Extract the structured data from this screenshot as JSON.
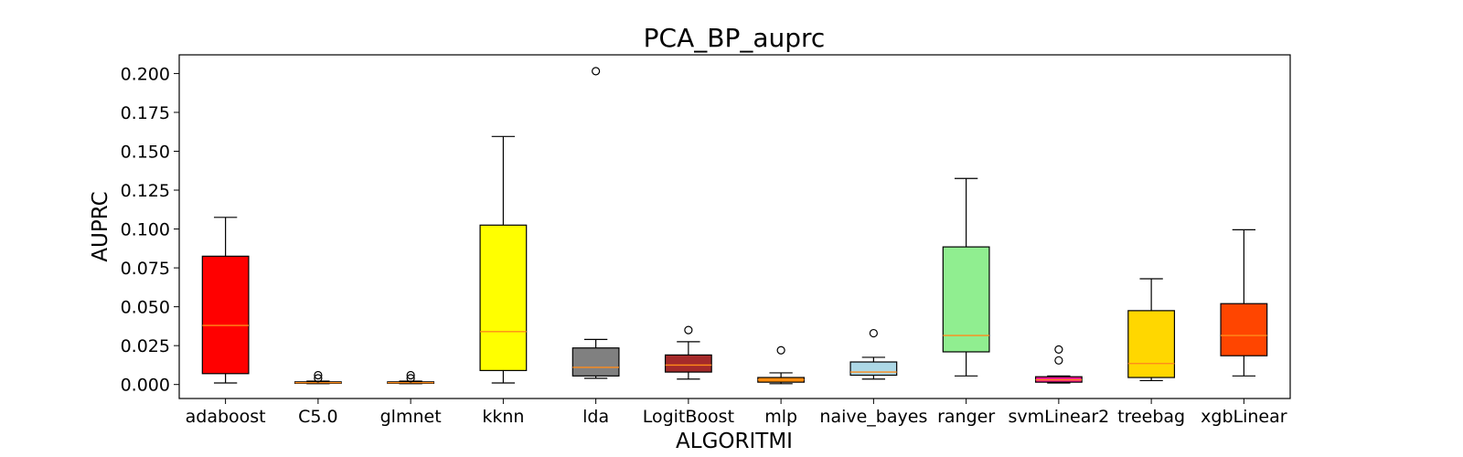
{
  "chart_data": {
    "type": "box",
    "title": "PCA_BP_auprc",
    "xlabel": "ALGORITMI",
    "ylabel": "AUPRC",
    "ylim": [
      -0.009,
      0.212
    ],
    "yticks": [
      "0.000",
      "0.025",
      "0.050",
      "0.075",
      "0.100",
      "0.125",
      "0.150",
      "0.175",
      "0.200"
    ],
    "grid": false,
    "median_color": "#ff8c1a",
    "categories": [
      "adaboost",
      "C5.0",
      "glmnet",
      "kknn",
      "lda",
      "LogitBoost",
      "mlp",
      "naive_bayes",
      "ranger",
      "svmLinear2",
      "treebag",
      "xgbLinear"
    ],
    "boxes": [
      {
        "name": "adaboost",
        "color": "#ff0000",
        "whislo": 0.001,
        "q1": 0.007,
        "median": 0.038,
        "q3": 0.0825,
        "whishi": 0.1075,
        "fliers": []
      },
      {
        "name": "C5.0",
        "color": "#ff8c00",
        "whislo": 0.0005,
        "q1": 0.0008,
        "median": 0.0012,
        "q3": 0.0017,
        "whishi": 0.0022,
        "fliers": [
          0.004,
          0.006
        ]
      },
      {
        "name": "glmnet",
        "color": "#ff8c00",
        "whislo": 0.0005,
        "q1": 0.0008,
        "median": 0.0012,
        "q3": 0.0017,
        "whishi": 0.0022,
        "fliers": [
          0.004,
          0.006
        ]
      },
      {
        "name": "kknn",
        "color": "#ffff00",
        "whislo": 0.001,
        "q1": 0.009,
        "median": 0.034,
        "q3": 0.1025,
        "whishi": 0.1595,
        "fliers": []
      },
      {
        "name": "lda",
        "color": "#808080",
        "whislo": 0.004,
        "q1": 0.0055,
        "median": 0.011,
        "q3": 0.0235,
        "whishi": 0.029,
        "fliers": [
          0.2015
        ]
      },
      {
        "name": "LogitBoost",
        "color": "#a52a2a",
        "whislo": 0.0035,
        "q1": 0.008,
        "median": 0.0125,
        "q3": 0.019,
        "whishi": 0.0275,
        "fliers": [
          0.035
        ]
      },
      {
        "name": "mlp",
        "color": "#ff8c00",
        "whislo": 0.0005,
        "q1": 0.0015,
        "median": 0.003,
        "q3": 0.0045,
        "whishi": 0.0075,
        "fliers": [
          0.022
        ]
      },
      {
        "name": "naive_bayes",
        "color": "#add8e6",
        "whislo": 0.0035,
        "q1": 0.006,
        "median": 0.008,
        "q3": 0.0145,
        "whishi": 0.0175,
        "fliers": [
          0.033
        ]
      },
      {
        "name": "ranger",
        "color": "#90ee90",
        "whislo": 0.0055,
        "q1": 0.021,
        "median": 0.0315,
        "q3": 0.0885,
        "whishi": 0.1325,
        "fliers": []
      },
      {
        "name": "svmLinear2",
        "color": "#ff1493",
        "whislo": 0.001,
        "q1": 0.0015,
        "median": 0.003,
        "q3": 0.005,
        "whishi": 0.0055,
        "fliers": [
          0.0155,
          0.0225
        ]
      },
      {
        "name": "treebag",
        "color": "#ffd700",
        "whislo": 0.0025,
        "q1": 0.0045,
        "median": 0.0135,
        "q3": 0.0475,
        "whishi": 0.068,
        "fliers": []
      },
      {
        "name": "xgbLinear",
        "color": "#ff4500",
        "whislo": 0.0055,
        "q1": 0.0185,
        "median": 0.0315,
        "q3": 0.052,
        "whishi": 0.0995,
        "fliers": []
      }
    ]
  }
}
